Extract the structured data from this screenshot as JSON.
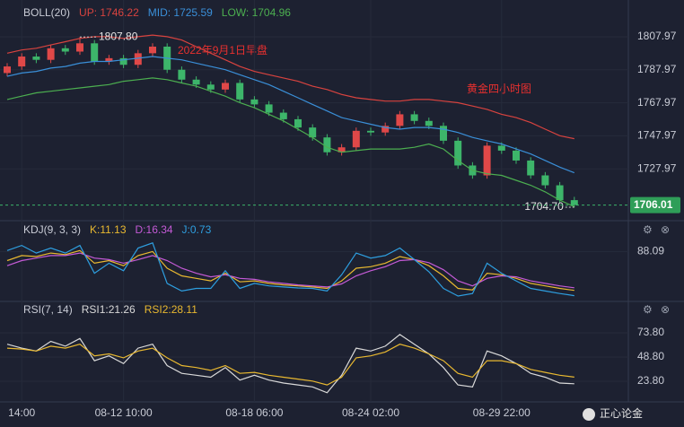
{
  "chart_data": [
    {
      "type": "candlestick",
      "title": "2022年9月1日早盘",
      "subtitle": "黄金四小时图",
      "indicator": "BOLL(20)",
      "categories": [
        null,
        "14:00",
        null,
        null,
        null,
        null,
        null,
        null,
        "08-12 10:00",
        null,
        null,
        null,
        null,
        null,
        null,
        null,
        null,
        "08-18 06:00",
        null,
        null,
        null,
        null,
        null,
        null,
        null,
        "08-24 02:00",
        null,
        null,
        null,
        null,
        null,
        null,
        null,
        null,
        "08-29 22:00",
        null,
        null,
        null,
        null,
        null
      ],
      "open": [
        1786,
        1790,
        1796,
        1794,
        1801,
        1799,
        1804,
        1793,
        1795,
        1791,
        1798,
        1802,
        1788,
        1782,
        1779,
        1776,
        1780,
        1770,
        1767,
        1762,
        1758,
        1753,
        1747,
        1738,
        1741,
        1751,
        1750,
        1754,
        1761,
        1757,
        1754,
        1745,
        1730,
        1724,
        1742,
        1739,
        1733,
        1724,
        1718,
        1709
      ],
      "high": [
        1792,
        1798,
        1798,
        1803,
        1803,
        1807.8,
        1806,
        1797,
        1797,
        1800,
        1804,
        1804,
        1790,
        1784,
        1781,
        1782,
        1782,
        1772,
        1769,
        1764,
        1760,
        1755,
        1749,
        1743,
        1753,
        1753,
        1756,
        1763,
        1763,
        1759,
        1756,
        1747,
        1732,
        1744,
        1744,
        1741,
        1735,
        1726,
        1720,
        1711
      ],
      "low": [
        1784,
        1788,
        1792,
        1792,
        1797,
        1797,
        1791,
        1791,
        1789,
        1789,
        1796,
        1786,
        1780,
        1777,
        1774,
        1774,
        1768,
        1765,
        1760,
        1756,
        1751,
        1745,
        1736,
        1736,
        1739,
        1748,
        1748,
        1752,
        1755,
        1752,
        1743,
        1728,
        1722,
        1722,
        1737,
        1731,
        1722,
        1716,
        1707,
        1704.7
      ],
      "close": [
        1790,
        1796,
        1794,
        1801,
        1799,
        1804,
        1793,
        1795,
        1791,
        1798,
        1802,
        1788,
        1782,
        1779,
        1776,
        1780,
        1770,
        1767,
        1762,
        1758,
        1753,
        1747,
        1738,
        1741,
        1751,
        1750,
        1754,
        1761,
        1757,
        1754,
        1745,
        1730,
        1724,
        1742,
        1739,
        1733,
        1724,
        1718,
        1709,
        1706.01
      ],
      "up_color": "#e04848",
      "down_color": "#3db56a",
      "series": [
        {
          "name": "UP: 1746.22",
          "color": "#d8433f",
          "values": [
            1798,
            1800,
            1801,
            1803,
            1805,
            1807,
            1808,
            1808,
            1807,
            1808,
            1809,
            1808,
            1806,
            1802,
            1798,
            1794,
            1790,
            1787,
            1785,
            1783,
            1781,
            1778,
            1776,
            1773,
            1771,
            1770,
            1769,
            1769,
            1770,
            1770,
            1769,
            1768,
            1766,
            1764,
            1761,
            1759,
            1756,
            1752,
            1748,
            1746.22
          ]
        },
        {
          "name": "MID: 1725.59",
          "color": "#3a8fd8",
          "values": [
            1784,
            1786,
            1787,
            1789,
            1790,
            1792,
            1793,
            1793,
            1794,
            1795,
            1796,
            1795,
            1794,
            1792,
            1790,
            1788,
            1785,
            1782,
            1779,
            1775,
            1771,
            1767,
            1763,
            1759,
            1757,
            1755,
            1753,
            1752,
            1753,
            1753,
            1752,
            1750,
            1747,
            1745,
            1743,
            1740,
            1737,
            1733,
            1729,
            1725.59
          ]
        },
        {
          "name": "LOW: 1704.96",
          "color": "#4caf50",
          "values": [
            1770,
            1772,
            1774,
            1775,
            1776,
            1777,
            1778,
            1779,
            1781,
            1782,
            1783,
            1782,
            1780,
            1778,
            1775,
            1772,
            1768,
            1765,
            1761,
            1757,
            1752,
            1747,
            1741,
            1738,
            1739,
            1740,
            1740,
            1740,
            1741,
            1743,
            1740,
            1733,
            1727,
            1725,
            1724,
            1721,
            1718,
            1714,
            1709,
            1704.96
          ]
        }
      ],
      "annotations": [
        {
          "value": 1807.8,
          "label": "1807.80"
        },
        {
          "value": 1704.7,
          "label": "1704.70"
        }
      ],
      "ylim": [
        1697.1,
        1830.25
      ],
      "yticks": [
        1727.97,
        1747.97,
        1767.97,
        1787.97,
        1807.97
      ],
      "grid": true
    },
    {
      "type": "line",
      "indicator": "KDJ(9, 3, 3)",
      "series": [
        {
          "name": "K:11.13",
          "color": "#e8b830",
          "values": [
            70,
            80,
            78,
            85,
            82,
            90,
            65,
            70,
            60,
            80,
            88,
            55,
            40,
            35,
            30,
            45,
            28,
            30,
            25,
            22,
            20,
            18,
            15,
            30,
            55,
            58,
            65,
            78,
            72,
            60,
            40,
            15,
            12,
            45,
            42,
            35,
            25,
            20,
            15,
            11.13
          ]
        },
        {
          "name": "D:16.34",
          "color": "#c45ad6",
          "values": [
            60,
            70,
            75,
            80,
            80,
            85,
            75,
            72,
            65,
            72,
            80,
            70,
            55,
            45,
            38,
            42,
            35,
            33,
            28,
            25,
            22,
            20,
            18,
            24,
            40,
            50,
            58,
            70,
            72,
            66,
            52,
            30,
            20,
            35,
            40,
            38,
            30,
            25,
            20,
            16.34
          ]
        },
        {
          "name": "J:0.73",
          "color": "#2e9fe0",
          "values": [
            90,
            100,
            85,
            95,
            85,
            100,
            45,
            65,
            50,
            95,
            105,
            25,
            10,
            15,
            15,
            50,
            15,
            25,
            20,
            18,
            16,
            15,
            10,
            42,
            85,
            75,
            80,
            95,
            72,
            48,
            15,
            0,
            5,
            65,
            45,
            30,
            15,
            10,
            5,
            0.73
          ]
        }
      ],
      "ylim": [
        0,
        110
      ],
      "yticks": [
        88.09
      ]
    },
    {
      "type": "line",
      "indicator": "RSI(7, 14)",
      "series": [
        {
          "name": "RSI1:21.26",
          "color": "#d9d9d9",
          "values": [
            62,
            58,
            55,
            65,
            60,
            68,
            45,
            50,
            42,
            58,
            62,
            40,
            32,
            30,
            28,
            38,
            25,
            30,
            25,
            22,
            20,
            18,
            12,
            30,
            58,
            55,
            60,
            72,
            62,
            52,
            38,
            20,
            18,
            55,
            50,
            42,
            32,
            28,
            22,
            21.26
          ]
        },
        {
          "name": "RSI2:28.11",
          "color": "#e8b830",
          "values": [
            58,
            57,
            55,
            60,
            58,
            62,
            50,
            52,
            48,
            55,
            58,
            48,
            40,
            38,
            35,
            40,
            32,
            33,
            30,
            28,
            26,
            24,
            20,
            28,
            48,
            50,
            54,
            62,
            58,
            52,
            45,
            32,
            28,
            45,
            45,
            42,
            36,
            33,
            30,
            28.11
          ]
        }
      ],
      "ylim": [
        5.3,
        88.6
      ],
      "yticks": [
        {
          "value": 73.8,
          "label": "73.80"
        },
        {
          "value": 48.8,
          "label": "48.80"
        },
        {
          "value": 23.8,
          "label": "23.80"
        }
      ]
    }
  ],
  "footer": "正心论金"
}
